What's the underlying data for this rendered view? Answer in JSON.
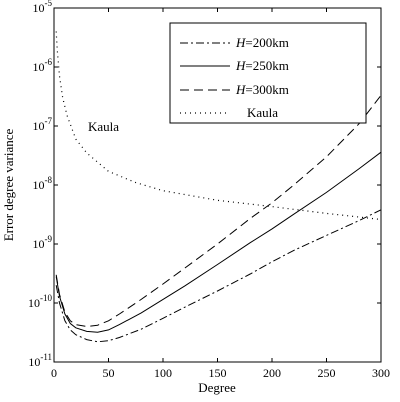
{
  "chart_data": {
    "type": "line",
    "xlabel": "Degree",
    "ylabel": "Error degree variance",
    "xlim": [
      0,
      300
    ],
    "ylim": [
      1e-11,
      1e-05
    ],
    "yscale": "log",
    "x_ticks": [
      0,
      50,
      100,
      150,
      200,
      250,
      300
    ],
    "x_tick_labels": [
      "0",
      "50",
      "100",
      "150",
      "200",
      "250",
      "300"
    ],
    "y_ticks": [
      1e-11,
      1e-10,
      1e-09,
      1e-08,
      1e-07,
      1e-06,
      1e-05
    ],
    "y_tick_base": "10",
    "y_tick_exponents": [
      "-11",
      "-10",
      "-9",
      "-8",
      "-7",
      "-6",
      "-5"
    ],
    "grid": false,
    "legend_position": "top-right",
    "annotation": {
      "text": "Kaula",
      "x": 30,
      "y": 1.1e-07
    },
    "series": [
      {
        "name_prefix": "H",
        "name_suffix": "=200km",
        "style": "dash-dot",
        "x": [
          2,
          5,
          10,
          15,
          20,
          30,
          40,
          50,
          60,
          80,
          100,
          120,
          150,
          180,
          200,
          220,
          250,
          280,
          300
        ],
        "y": [
          2e-10,
          1e-10,
          5e-11,
          3.5e-11,
          2.9e-11,
          2.4e-11,
          2.2e-11,
          2.3e-11,
          2.6e-11,
          3.6e-11,
          5.5e-11,
          8.5e-11,
          1.6e-10,
          3.1e-10,
          5e-10,
          7.8e-10,
          1.4e-09,
          2.5e-09,
          3.8e-09
        ]
      },
      {
        "name_prefix": "H",
        "name_suffix": "=250km",
        "style": "solid",
        "x": [
          2,
          5,
          10,
          15,
          20,
          30,
          40,
          50,
          60,
          80,
          100,
          120,
          150,
          180,
          200,
          220,
          250,
          280,
          300
        ],
        "y": [
          2.8e-10,
          1.3e-10,
          6.5e-11,
          4.5e-11,
          3.8e-11,
          3.3e-11,
          3.2e-11,
          3.5e-11,
          4.3e-11,
          6.8e-11,
          1.15e-10,
          1.95e-10,
          4.5e-10,
          1.05e-09,
          1.8e-09,
          3.2e-09,
          7.5e-09,
          1.9e-08,
          3.6e-08
        ]
      },
      {
        "name_prefix": "H",
        "name_suffix": "=300km",
        "style": "dashed",
        "x": [
          2,
          5,
          10,
          15,
          20,
          30,
          40,
          50,
          60,
          80,
          100,
          120,
          150,
          180,
          200,
          220,
          250,
          280,
          300
        ],
        "y": [
          3e-10,
          1.4e-10,
          7e-11,
          5e-11,
          4.3e-11,
          4e-11,
          4.2e-11,
          5e-11,
          6.5e-11,
          1.15e-10,
          2.1e-10,
          3.9e-10,
          1e-09,
          2.7e-09,
          5e-09,
          1e-08,
          3e-08,
          1.1e-07,
          3.3e-07
        ]
      },
      {
        "name": "Kaula",
        "style": "dotted",
        "x": [
          2,
          3,
          5,
          8,
          12,
          20,
          30,
          50,
          75,
          100,
          150,
          200,
          250,
          300
        ],
        "y": [
          4e-06,
          1.9e-06,
          7e-07,
          3e-07,
          1.5e-07,
          6e-08,
          3.5e-08,
          1.7e-08,
          1.1e-08,
          8e-09,
          5.5e-09,
          4.3e-09,
          3.3e-09,
          2.6e-09
        ]
      }
    ]
  }
}
